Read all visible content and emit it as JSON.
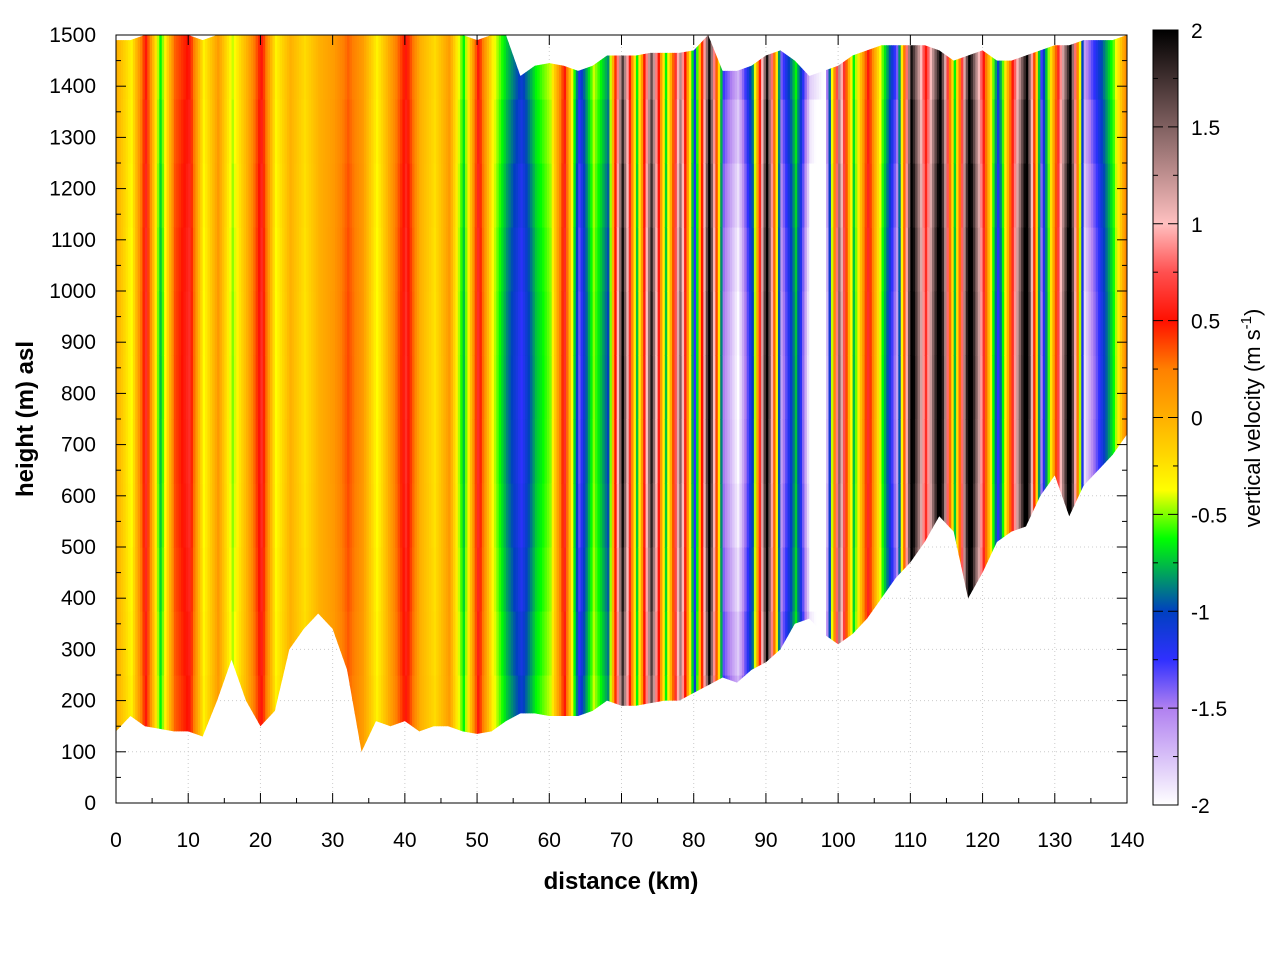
{
  "chart_data": {
    "type": "heatmap",
    "xlabel": "distance (km)",
    "ylabel": "height (m) asl",
    "colorbar_label": "vertical velocity (m s",
    "colorbar_label_sup": "-1",
    "colorbar_label_end": ")",
    "xlim": [
      0,
      140
    ],
    "ylim": [
      0,
      1500
    ],
    "clim": [
      -2,
      2
    ],
    "grid": true,
    "x_ticks": [
      "0",
      "10",
      "20",
      "30",
      "40",
      "50",
      "60",
      "70",
      "80",
      "90",
      "100",
      "110",
      "120",
      "130",
      "140"
    ],
    "y_ticks": [
      "0",
      "100",
      "200",
      "300",
      "400",
      "500",
      "600",
      "700",
      "800",
      "900",
      "1000",
      "1100",
      "1200",
      "1300",
      "1400",
      "1500"
    ],
    "colorbar_ticks": [
      "2",
      "1.5",
      "1",
      "0.5",
      "0",
      "-0.5",
      "-1",
      "-1.5",
      "-2"
    ],
    "colormap": [
      [
        -2.0,
        "#ffffff"
      ],
      [
        -1.5,
        "#b080f0"
      ],
      [
        -1.25,
        "#3030ff"
      ],
      [
        -1.0,
        "#0040c0"
      ],
      [
        -0.875,
        "#008080"
      ],
      [
        -0.75,
        "#00c040"
      ],
      [
        -0.625,
        "#00ff00"
      ],
      [
        -0.5,
        "#80ff00"
      ],
      [
        -0.375,
        "#ffff00"
      ],
      [
        -0.2,
        "#ffd800"
      ],
      [
        0.0,
        "#ffb000"
      ],
      [
        0.25,
        "#ff8000"
      ],
      [
        0.5,
        "#ff1000"
      ],
      [
        0.75,
        "#ff5050"
      ],
      [
        1.0,
        "#ffc0c0"
      ],
      [
        1.5,
        "#806060"
      ],
      [
        2.0,
        "#000000"
      ]
    ],
    "distance_km": [
      0,
      2,
      4,
      6,
      8,
      10,
      12,
      14,
      16,
      18,
      20,
      22,
      24,
      26,
      28,
      30,
      32,
      34,
      36,
      38,
      40,
      42,
      44,
      46,
      48,
      50,
      52,
      54,
      56,
      58,
      60,
      62,
      64,
      66,
      68,
      70,
      72,
      74,
      76,
      78,
      80,
      82,
      84,
      86,
      88,
      90,
      92,
      94,
      96,
      98,
      100,
      102,
      104,
      106,
      108,
      110,
      112,
      114,
      116,
      118,
      120,
      122,
      124,
      126,
      128,
      130,
      132,
      134,
      136,
      138,
      140
    ],
    "column_velocity": [
      0,
      -0.3,
      0.5,
      -0.6,
      0.3,
      0.5,
      -0.3,
      0.1,
      -0.4,
      0,
      0.5,
      -0.3,
      0,
      -0.2,
      0,
      0.1,
      0.3,
      0.1,
      -0.3,
      0.1,
      0.5,
      0,
      -0.2,
      0.1,
      -0.6,
      0.5,
      -0.3,
      -0.7,
      -1,
      -0.6,
      -0.4,
      0.5,
      -1.1,
      -0.4,
      -0.8,
      1.6,
      -0.6,
      1.5,
      -0.6,
      1.2,
      -1,
      1.8,
      -1.2,
      -1.6,
      -0.8,
      1.8,
      -1.3,
      -0.6,
      -1.7,
      -1.9,
      1.2,
      -0.6,
      0.5,
      -0.5,
      -1.3,
      1.8,
      0.5,
      1.9,
      -0.6,
      1.9,
      0.5,
      -1,
      0.5,
      1.9,
      -1.2,
      0.3,
      1.9,
      -1.5,
      -1,
      -0.5,
      0.3
    ],
    "surface_height_m": [
      140,
      170,
      150,
      145,
      140,
      140,
      130,
      200,
      280,
      200,
      150,
      180,
      300,
      340,
      370,
      340,
      260,
      100,
      160,
      150,
      160,
      140,
      150,
      150,
      140,
      135,
      140,
      160,
      175,
      175,
      170,
      170,
      170,
      180,
      200,
      190,
      190,
      195,
      200,
      200,
      215,
      230,
      245,
      235,
      260,
      275,
      300,
      350,
      360,
      330,
      310,
      330,
      360,
      400,
      440,
      470,
      510,
      560,
      530,
      400,
      450,
      510,
      530,
      540,
      600,
      640,
      560,
      620,
      650,
      680,
      720
    ],
    "top_height_m": [
      1490,
      1490,
      1500,
      1500,
      1500,
      1500,
      1490,
      1500,
      1500,
      1500,
      1500,
      1500,
      1500,
      1500,
      1500,
      1500,
      1500,
      1500,
      1500,
      1500,
      1500,
      1500,
      1500,
      1500,
      1500,
      1490,
      1500,
      1500,
      1420,
      1440,
      1445,
      1440,
      1430,
      1440,
      1460,
      1460,
      1460,
      1465,
      1465,
      1465,
      1470,
      1500,
      1430,
      1430,
      1440,
      1460,
      1470,
      1450,
      1420,
      1430,
      1440,
      1460,
      1470,
      1480,
      1480,
      1480,
      1480,
      1470,
      1450,
      1460,
      1470,
      1450,
      1450,
      1460,
      1470,
      1480,
      1480,
      1490,
      1490,
      1490,
      1500
    ]
  }
}
